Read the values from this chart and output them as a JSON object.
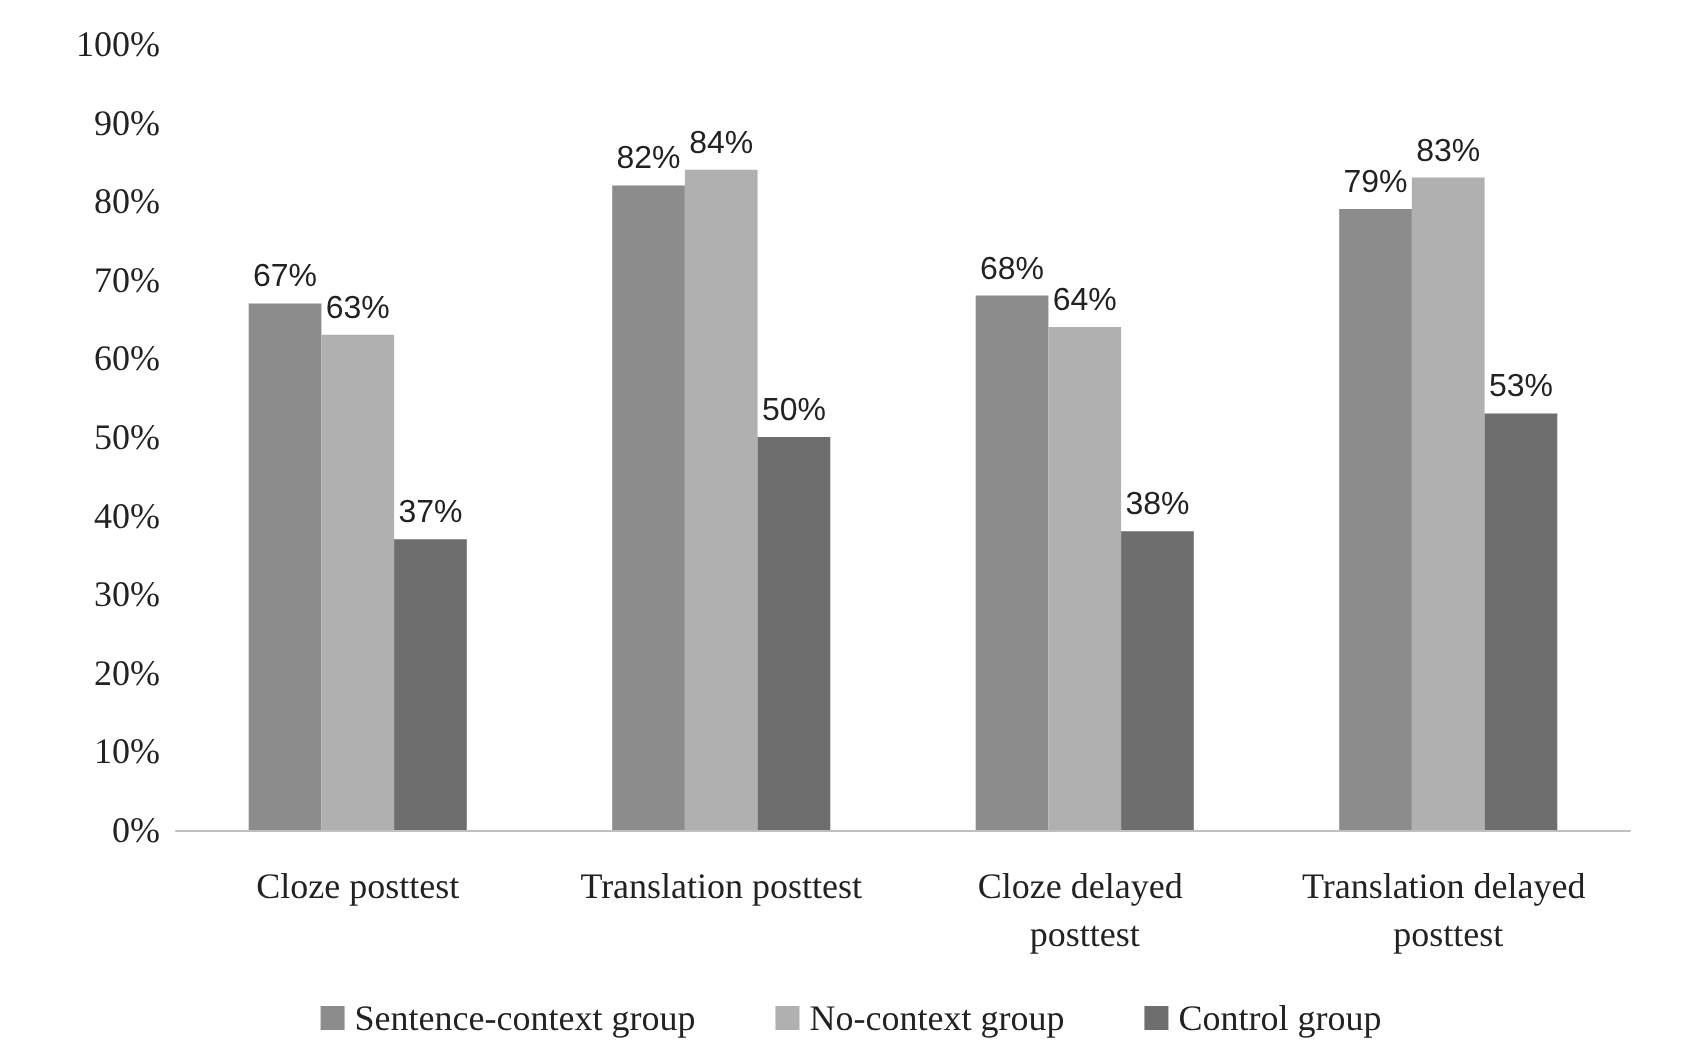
{
  "chart_data": {
    "type": "bar",
    "categories": [
      "Cloze posttest",
      "Translation posttest",
      "Cloze delayed posttest",
      "Translation delayed posttest"
    ],
    "series": [
      {
        "name": "Sentence-context group",
        "color": "#8c8c8c",
        "values": [
          67,
          82,
          68,
          79
        ],
        "value_labels": [
          "67%",
          "82%",
          "68%",
          "79%"
        ]
      },
      {
        "name": "No-context group",
        "color": "#b0b0b0",
        "values": [
          63,
          84,
          64,
          83
        ],
        "value_labels": [
          "63%",
          "84%",
          "64%",
          "83%"
        ]
      },
      {
        "name": "Control group",
        "color": "#6e6e6e",
        "values": [
          37,
          50,
          38,
          53
        ],
        "value_labels": [
          "37%",
          "50%",
          "38%",
          "53%"
        ]
      }
    ],
    "ylim": [
      0,
      100
    ],
    "yticks": [
      {
        "value": 0,
        "label": "0%"
      },
      {
        "value": 10,
        "label": "10%"
      },
      {
        "value": 20,
        "label": "20%"
      },
      {
        "value": 30,
        "label": "30%"
      },
      {
        "value": 40,
        "label": "40%"
      },
      {
        "value": 50,
        "label": "50%"
      },
      {
        "value": 60,
        "label": "60%"
      },
      {
        "value": 70,
        "label": "70%"
      },
      {
        "value": 80,
        "label": "80%"
      },
      {
        "value": 90,
        "label": "90%"
      },
      {
        "value": 100,
        "label": "100%"
      }
    ],
    "grid": false,
    "legend": "bottom"
  }
}
